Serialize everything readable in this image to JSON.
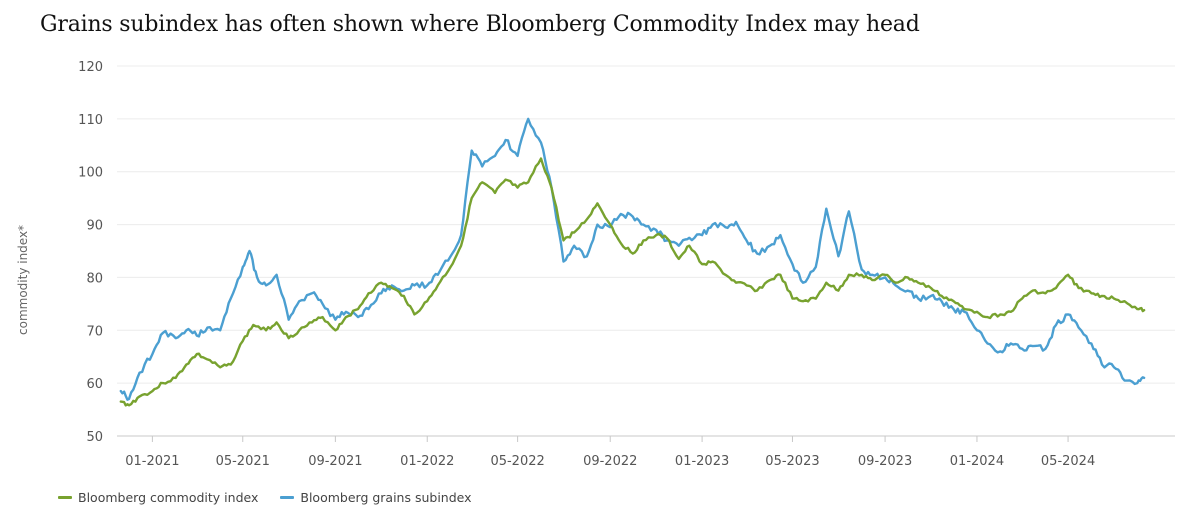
{
  "title": "Grains subindex has often shown where Bloomberg Commodity Index may head",
  "chart_data": {
    "type": "line",
    "title": "Grains subindex has often shown where Bloomberg Commodity Index may head",
    "xlabel": "",
    "ylabel": "commodity index*",
    "ylim": [
      50,
      120
    ],
    "yticks": [
      50,
      60,
      70,
      80,
      90,
      100,
      110,
      120
    ],
    "xlim": [
      "2020-11-15",
      "2024-09-20"
    ],
    "xticks": [
      "2021-01-01",
      "2021-05-01",
      "2021-09-01",
      "2022-01-01",
      "2022-05-01",
      "2022-09-01",
      "2023-01-01",
      "2023-05-01",
      "2023-09-01",
      "2024-01-01",
      "2024-05-01"
    ],
    "xtick_labels": [
      "01-2021",
      "05-2021",
      "09-2021",
      "01-2022",
      "05-2022",
      "09-2022",
      "01-2023",
      "05-2023",
      "09-2023",
      "01-2024",
      "05-2024"
    ],
    "grid": true,
    "legend_position": "bottom-left",
    "series": [
      {
        "name": "Bloomberg commodity index",
        "color": "#78a22f",
        "points": [
          [
            "2020-11-20",
            56.5
          ],
          [
            "2020-12-01",
            55.8
          ],
          [
            "2020-12-15",
            57.5
          ],
          [
            "2021-01-01",
            58.5
          ],
          [
            "2021-01-15",
            60.0
          ],
          [
            "2021-02-01",
            61.0
          ],
          [
            "2021-02-15",
            63.5
          ],
          [
            "2021-03-01",
            65.5
          ],
          [
            "2021-03-15",
            64.5
          ],
          [
            "2021-04-01",
            63.0
          ],
          [
            "2021-04-15",
            63.5
          ],
          [
            "2021-05-01",
            68.0
          ],
          [
            "2021-05-15",
            71.0
          ],
          [
            "2021-06-01",
            70.0
          ],
          [
            "2021-06-15",
            71.5
          ],
          [
            "2021-07-01",
            68.5
          ],
          [
            "2021-07-15",
            70.0
          ],
          [
            "2021-08-01",
            71.5
          ],
          [
            "2021-08-15",
            72.5
          ],
          [
            "2021-09-01",
            70.0
          ],
          [
            "2021-09-15",
            72.5
          ],
          [
            "2021-10-01",
            74.0
          ],
          [
            "2021-10-15",
            77.0
          ],
          [
            "2021-11-01",
            79.0
          ],
          [
            "2021-11-15",
            78.0
          ],
          [
            "2021-12-01",
            76.5
          ],
          [
            "2021-12-15",
            73.0
          ],
          [
            "2022-01-01",
            75.5
          ],
          [
            "2022-01-15",
            78.5
          ],
          [
            "2022-02-01",
            82.0
          ],
          [
            "2022-02-15",
            86.0
          ],
          [
            "2022-03-01",
            95.0
          ],
          [
            "2022-03-15",
            98.0
          ],
          [
            "2022-04-01",
            96.0
          ],
          [
            "2022-04-15",
            98.5
          ],
          [
            "2022-05-01",
            97.0
          ],
          [
            "2022-05-15",
            98.0
          ],
          [
            "2022-06-01",
            102.5
          ],
          [
            "2022-06-15",
            97.0
          ],
          [
            "2022-07-01",
            87.0
          ],
          [
            "2022-07-15",
            88.5
          ],
          [
            "2022-08-01",
            91.0
          ],
          [
            "2022-08-15",
            94.0
          ],
          [
            "2022-09-01",
            90.0
          ],
          [
            "2022-09-15",
            86.5
          ],
          [
            "2022-10-01",
            84.5
          ],
          [
            "2022-10-15",
            87.0
          ],
          [
            "2022-11-01",
            88.0
          ],
          [
            "2022-11-15",
            87.5
          ],
          [
            "2022-12-01",
            83.5
          ],
          [
            "2022-12-15",
            86.0
          ],
          [
            "2023-01-01",
            82.5
          ],
          [
            "2023-01-15",
            83.0
          ],
          [
            "2023-02-01",
            80.5
          ],
          [
            "2023-02-15",
            79.0
          ],
          [
            "2023-03-01",
            78.5
          ],
          [
            "2023-03-15",
            77.5
          ],
          [
            "2023-04-01",
            79.5
          ],
          [
            "2023-04-15",
            80.5
          ],
          [
            "2023-05-01",
            76.0
          ],
          [
            "2023-05-15",
            75.5
          ],
          [
            "2023-06-01",
            76.0
          ],
          [
            "2023-06-15",
            79.0
          ],
          [
            "2023-07-01",
            77.5
          ],
          [
            "2023-07-15",
            80.5
          ],
          [
            "2023-08-01",
            80.5
          ],
          [
            "2023-08-15",
            79.5
          ],
          [
            "2023-09-01",
            80.5
          ],
          [
            "2023-09-15",
            79.0
          ],
          [
            "2023-10-01",
            80.0
          ],
          [
            "2023-10-15",
            79.0
          ],
          [
            "2023-11-01",
            78.0
          ],
          [
            "2023-11-15",
            76.5
          ],
          [
            "2023-12-01",
            75.5
          ],
          [
            "2023-12-15",
            74.0
          ],
          [
            "2024-01-01",
            73.5
          ],
          [
            "2024-01-15",
            72.5
          ],
          [
            "2024-02-01",
            73.0
          ],
          [
            "2024-02-15",
            73.5
          ],
          [
            "2024-03-01",
            76.0
          ],
          [
            "2024-03-15",
            77.5
          ],
          [
            "2024-04-01",
            77.0
          ],
          [
            "2024-04-15",
            78.0
          ],
          [
            "2024-05-01",
            80.5
          ],
          [
            "2024-05-15",
            78.0
          ],
          [
            "2024-06-01",
            77.0
          ],
          [
            "2024-06-15",
            76.5
          ],
          [
            "2024-07-01",
            76.0
          ],
          [
            "2024-07-15",
            75.5
          ],
          [
            "2024-08-01",
            74.0
          ],
          [
            "2024-08-10",
            73.8
          ]
        ]
      },
      {
        "name": "Bloomberg grains subindex",
        "color": "#4b9fd1",
        "points": [
          [
            "2020-11-20",
            58.5
          ],
          [
            "2020-12-01",
            57.0
          ],
          [
            "2020-12-15",
            62.0
          ],
          [
            "2021-01-01",
            65.5
          ],
          [
            "2021-01-15",
            69.5
          ],
          [
            "2021-02-01",
            68.5
          ],
          [
            "2021-02-15",
            70.0
          ],
          [
            "2021-03-01",
            69.0
          ],
          [
            "2021-03-15",
            70.5
          ],
          [
            "2021-04-01",
            70.0
          ],
          [
            "2021-04-15",
            76.0
          ],
          [
            "2021-05-01",
            82.0
          ],
          [
            "2021-05-10",
            85.0
          ],
          [
            "2021-05-20",
            80.0
          ],
          [
            "2021-06-01",
            78.5
          ],
          [
            "2021-06-15",
            80.5
          ],
          [
            "2021-07-01",
            72.0
          ],
          [
            "2021-07-15",
            75.5
          ],
          [
            "2021-08-01",
            77.0
          ],
          [
            "2021-08-15",
            75.0
          ],
          [
            "2021-09-01",
            72.0
          ],
          [
            "2021-09-15",
            73.5
          ],
          [
            "2021-10-01",
            72.5
          ],
          [
            "2021-10-15",
            74.0
          ],
          [
            "2021-11-01",
            77.0
          ],
          [
            "2021-11-15",
            78.5
          ],
          [
            "2021-12-01",
            77.5
          ],
          [
            "2021-12-15",
            78.5
          ],
          [
            "2022-01-01",
            78.5
          ],
          [
            "2022-01-15",
            80.5
          ],
          [
            "2022-02-01",
            84.0
          ],
          [
            "2022-02-15",
            88.0
          ],
          [
            "2022-03-01",
            104.0
          ],
          [
            "2022-03-15",
            101.0
          ],
          [
            "2022-04-01",
            103.0
          ],
          [
            "2022-04-15",
            106.0
          ],
          [
            "2022-05-01",
            103.0
          ],
          [
            "2022-05-15",
            110.0
          ],
          [
            "2022-06-01",
            105.5
          ],
          [
            "2022-06-15",
            97.0
          ],
          [
            "2022-07-01",
            83.0
          ],
          [
            "2022-07-15",
            86.0
          ],
          [
            "2022-08-01",
            84.0
          ],
          [
            "2022-08-15",
            90.0
          ],
          [
            "2022-09-01",
            89.5
          ],
          [
            "2022-09-15",
            92.0
          ],
          [
            "2022-10-01",
            91.5
          ],
          [
            "2022-10-15",
            90.0
          ],
          [
            "2022-11-01",
            89.0
          ],
          [
            "2022-11-15",
            87.0
          ],
          [
            "2022-12-01",
            86.0
          ],
          [
            "2022-12-15",
            87.5
          ],
          [
            "2023-01-01",
            88.0
          ],
          [
            "2023-01-15",
            90.0
          ],
          [
            "2023-02-01",
            89.5
          ],
          [
            "2023-02-15",
            90.5
          ],
          [
            "2023-03-01",
            87.0
          ],
          [
            "2023-03-15",
            84.5
          ],
          [
            "2023-04-01",
            86.0
          ],
          [
            "2023-04-15",
            88.0
          ],
          [
            "2023-05-01",
            82.5
          ],
          [
            "2023-05-15",
            79.0
          ],
          [
            "2023-06-01",
            82.0
          ],
          [
            "2023-06-15",
            93.0
          ],
          [
            "2023-07-01",
            84.0
          ],
          [
            "2023-07-15",
            92.5
          ],
          [
            "2023-08-01",
            81.5
          ],
          [
            "2023-08-15",
            80.5
          ],
          [
            "2023-09-01",
            80.0
          ],
          [
            "2023-09-15",
            78.5
          ],
          [
            "2023-10-01",
            77.5
          ],
          [
            "2023-10-15",
            76.0
          ],
          [
            "2023-11-01",
            76.5
          ],
          [
            "2023-11-15",
            75.5
          ],
          [
            "2023-12-01",
            74.0
          ],
          [
            "2023-12-15",
            73.5
          ],
          [
            "2024-01-01",
            70.0
          ],
          [
            "2024-01-15",
            67.5
          ],
          [
            "2024-02-01",
            66.0
          ],
          [
            "2024-02-15",
            67.5
          ],
          [
            "2024-03-01",
            66.5
          ],
          [
            "2024-03-15",
            67.0
          ],
          [
            "2024-04-01",
            66.5
          ],
          [
            "2024-04-15",
            71.0
          ],
          [
            "2024-05-01",
            73.0
          ],
          [
            "2024-05-15",
            70.5
          ],
          [
            "2024-06-01",
            67.5
          ],
          [
            "2024-06-15",
            63.5
          ],
          [
            "2024-07-01",
            63.0
          ],
          [
            "2024-07-15",
            60.5
          ],
          [
            "2024-08-01",
            60.0
          ],
          [
            "2024-08-10",
            61.0
          ]
        ]
      }
    ]
  }
}
